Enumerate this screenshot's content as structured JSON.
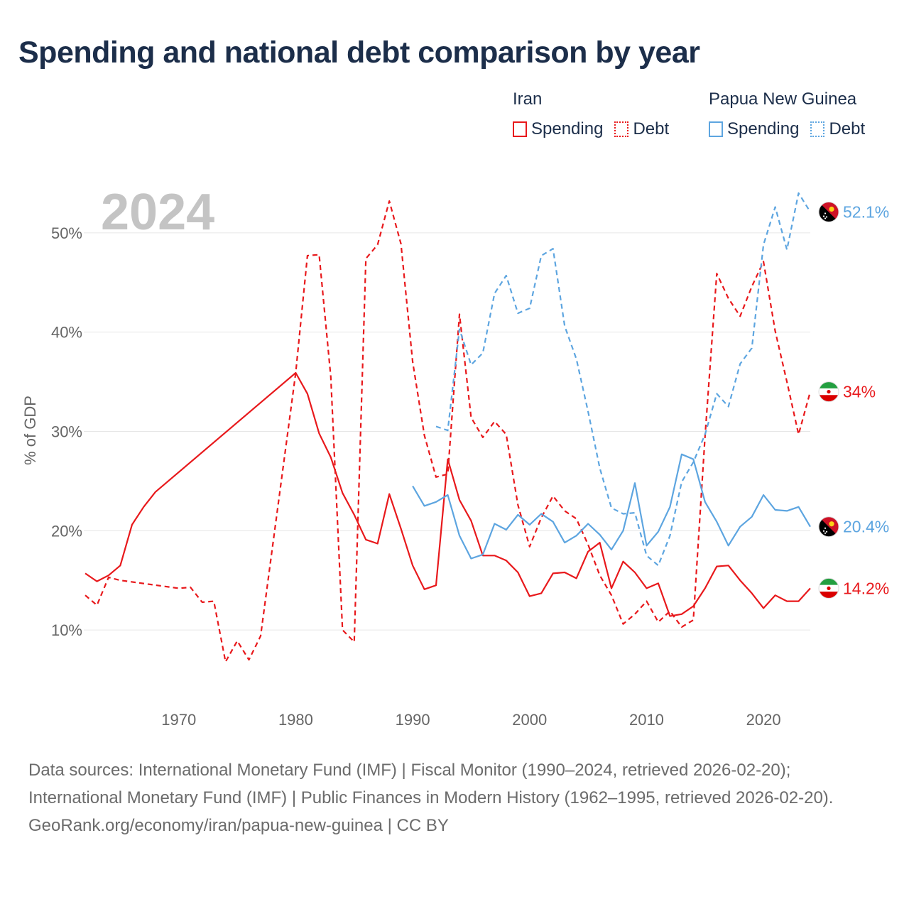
{
  "title": "Spending and national debt comparison by year",
  "legend": {
    "groups": [
      {
        "country": "Iran",
        "color": "#e8191c",
        "spending_label": "Spending",
        "debt_label": "Debt"
      },
      {
        "country": "Papua New Guinea",
        "color": "#5da5e0",
        "spending_label": "Spending",
        "debt_label": "Debt"
      }
    ]
  },
  "footer": {
    "sources": "Data sources: International Monetary Fund (IMF) | Fiscal Monitor (1990–2024, retrieved 2026-02-20); International Monetary Fund (IMF) | Public Finances in Modern History (1962–1995, retrieved 2026-02-20).",
    "credit": "GeoRank.org/economy/iran/papua-new-guinea | CC BY"
  },
  "chart_data": {
    "type": "line",
    "year_label": "2024",
    "ylabel": "% of GDP",
    "xlim": [
      1962,
      2024
    ],
    "ylim": [
      3,
      57
    ],
    "xticks": [
      1970,
      1980,
      1990,
      2000,
      2010,
      2020
    ],
    "xtick_labels": [
      "1970",
      "1980",
      "1990",
      "2000",
      "2010",
      "2020"
    ],
    "yticks": [
      10,
      20,
      30,
      40,
      50
    ],
    "ytick_labels": [
      "10%",
      "20%",
      "30%",
      "40%",
      "50%"
    ],
    "grid": true,
    "series": [
      {
        "name": "Iran Spending",
        "country": "Iran",
        "metric": "Spending",
        "color": "#e8191c",
        "dash": "solid",
        "end_label": "14.2%",
        "flag": "iran-flag-icon",
        "points": [
          [
            1962,
            15.7
          ],
          [
            1963,
            14.9
          ],
          [
            1964,
            15.5
          ],
          [
            1965,
            16.5
          ],
          [
            1966,
            20.6
          ],
          [
            1967,
            22.4
          ],
          [
            1968,
            23.9
          ],
          [
            1980,
            35.9
          ],
          [
            1981,
            33.8
          ],
          [
            1982,
            29.8
          ],
          [
            1983,
            27.4
          ],
          [
            1984,
            23.8
          ],
          [
            1985,
            21.6
          ],
          [
            1986,
            19.1
          ],
          [
            1987,
            18.7
          ],
          [
            1988,
            23.7
          ],
          [
            1989,
            20.2
          ],
          [
            1990,
            16.5
          ],
          [
            1991,
            14.1
          ],
          [
            1992,
            14.5
          ],
          [
            1993,
            27.2
          ],
          [
            1994,
            23.1
          ],
          [
            1995,
            21.0
          ],
          [
            1996,
            17.5
          ],
          [
            1997,
            17.5
          ],
          [
            1998,
            17.0
          ],
          [
            1999,
            15.8
          ],
          [
            2000,
            13.4
          ],
          [
            2001,
            13.7
          ],
          [
            2002,
            15.7
          ],
          [
            2003,
            15.8
          ],
          [
            2004,
            15.2
          ],
          [
            2005,
            17.9
          ],
          [
            2006,
            18.8
          ],
          [
            2007,
            14.2
          ],
          [
            2008,
            16.9
          ],
          [
            2009,
            15.8
          ],
          [
            2010,
            14.2
          ],
          [
            2011,
            14.7
          ],
          [
            2012,
            11.4
          ],
          [
            2013,
            11.6
          ],
          [
            2014,
            12.4
          ],
          [
            2015,
            14.2
          ],
          [
            2016,
            16.4
          ],
          [
            2017,
            16.5
          ],
          [
            2018,
            15.0
          ],
          [
            2019,
            13.7
          ],
          [
            2020,
            12.2
          ],
          [
            2021,
            13.5
          ],
          [
            2022,
            12.9
          ],
          [
            2023,
            12.9
          ],
          [
            2024,
            14.2
          ]
        ]
      },
      {
        "name": "Iran Debt",
        "country": "Iran",
        "metric": "Debt",
        "color": "#e8191c",
        "dash": "dashed",
        "end_label": "34%",
        "flag": "iran-flag-icon",
        "points": [
          [
            1962,
            13.5
          ],
          [
            1963,
            12.5
          ],
          [
            1964,
            15.3
          ],
          [
            1965,
            15.0
          ],
          [
            1970,
            14.2
          ],
          [
            1971,
            14.3
          ],
          [
            1972,
            12.8
          ],
          [
            1973,
            12.9
          ],
          [
            1974,
            6.8
          ],
          [
            1975,
            8.9
          ],
          [
            1976,
            7.0
          ],
          [
            1977,
            9.4
          ],
          [
            1980,
            35.9
          ],
          [
            1981,
            47.7
          ],
          [
            1982,
            47.8
          ],
          [
            1983,
            35.5
          ],
          [
            1984,
            10.0
          ],
          [
            1985,
            8.8
          ],
          [
            1986,
            47.4
          ],
          [
            1987,
            48.8
          ],
          [
            1988,
            53.2
          ],
          [
            1989,
            48.9
          ],
          [
            1990,
            37.0
          ],
          [
            1991,
            29.6
          ],
          [
            1992,
            25.4
          ],
          [
            1993,
            25.7
          ],
          [
            1994,
            41.8
          ],
          [
            1995,
            31.4
          ],
          [
            1996,
            29.4
          ],
          [
            1997,
            31.0
          ],
          [
            1998,
            29.7
          ],
          [
            1999,
            22.6
          ],
          [
            2000,
            18.4
          ],
          [
            2001,
            21.3
          ],
          [
            2002,
            23.5
          ],
          [
            2003,
            22.0
          ],
          [
            2004,
            21.2
          ],
          [
            2005,
            18.6
          ],
          [
            2006,
            15.5
          ],
          [
            2007,
            13.5
          ],
          [
            2008,
            10.6
          ],
          [
            2009,
            11.6
          ],
          [
            2010,
            12.9
          ],
          [
            2011,
            10.8
          ],
          [
            2012,
            11.9
          ],
          [
            2013,
            10.3
          ],
          [
            2014,
            11.0
          ],
          [
            2015,
            29.5
          ],
          [
            2016,
            45.9
          ],
          [
            2017,
            43.4
          ],
          [
            2018,
            41.6
          ],
          [
            2019,
            44.6
          ],
          [
            2020,
            47.1
          ],
          [
            2021,
            40.1
          ],
          [
            2022,
            35.0
          ],
          [
            2023,
            29.7
          ],
          [
            2024,
            34.0
          ]
        ]
      },
      {
        "name": "Papua New Guinea Spending",
        "country": "Papua New Guinea",
        "metric": "Spending",
        "color": "#5da5e0",
        "dash": "solid",
        "end_label": "20.4%",
        "flag": "png-flag-icon",
        "points": [
          [
            1990,
            24.5
          ],
          [
            1991,
            22.5
          ],
          [
            1992,
            22.9
          ],
          [
            1993,
            23.6
          ],
          [
            1994,
            19.5
          ],
          [
            1995,
            17.2
          ],
          [
            1996,
            17.6
          ],
          [
            1997,
            20.7
          ],
          [
            1998,
            20.1
          ],
          [
            1999,
            21.6
          ],
          [
            2000,
            20.6
          ],
          [
            2001,
            21.7
          ],
          [
            2002,
            20.9
          ],
          [
            2003,
            18.8
          ],
          [
            2004,
            19.5
          ],
          [
            2005,
            20.7
          ],
          [
            2006,
            19.6
          ],
          [
            2007,
            18.1
          ],
          [
            2008,
            20.0
          ],
          [
            2009,
            24.8
          ],
          [
            2010,
            18.5
          ],
          [
            2011,
            19.9
          ],
          [
            2012,
            22.4
          ],
          [
            2013,
            27.7
          ],
          [
            2014,
            27.2
          ],
          [
            2015,
            22.9
          ],
          [
            2016,
            20.9
          ],
          [
            2017,
            18.5
          ],
          [
            2018,
            20.4
          ],
          [
            2019,
            21.4
          ],
          [
            2020,
            23.6
          ],
          [
            2021,
            22.1
          ],
          [
            2022,
            22.0
          ],
          [
            2023,
            22.4
          ],
          [
            2024,
            20.4
          ]
        ]
      },
      {
        "name": "Papua New Guinea Debt",
        "country": "Papua New Guinea",
        "metric": "Debt",
        "color": "#5da5e0",
        "dash": "dashed",
        "end_label": "52.1%",
        "flag": "png-flag-icon",
        "points": [
          [
            1992,
            30.5
          ],
          [
            1993,
            30.1
          ],
          [
            1994,
            40.3
          ],
          [
            1995,
            36.7
          ],
          [
            1996,
            37.9
          ],
          [
            1997,
            43.9
          ],
          [
            1998,
            45.7
          ],
          [
            1999,
            41.9
          ],
          [
            2000,
            42.4
          ],
          [
            2001,
            47.7
          ],
          [
            2002,
            48.4
          ],
          [
            2003,
            40.6
          ],
          [
            2004,
            37.3
          ],
          [
            2005,
            32.0
          ],
          [
            2006,
            26.3
          ],
          [
            2007,
            22.3
          ],
          [
            2008,
            21.7
          ],
          [
            2009,
            21.8
          ],
          [
            2010,
            17.5
          ],
          [
            2011,
            16.5
          ],
          [
            2012,
            19.5
          ],
          [
            2013,
            24.9
          ],
          [
            2014,
            26.9
          ],
          [
            2015,
            29.7
          ],
          [
            2016,
            33.8
          ],
          [
            2017,
            32.5
          ],
          [
            2018,
            36.8
          ],
          [
            2019,
            38.4
          ],
          [
            2020,
            48.8
          ],
          [
            2021,
            52.6
          ],
          [
            2022,
            48.3
          ],
          [
            2023,
            54.0
          ],
          [
            2024,
            52.1
          ]
        ]
      }
    ]
  }
}
